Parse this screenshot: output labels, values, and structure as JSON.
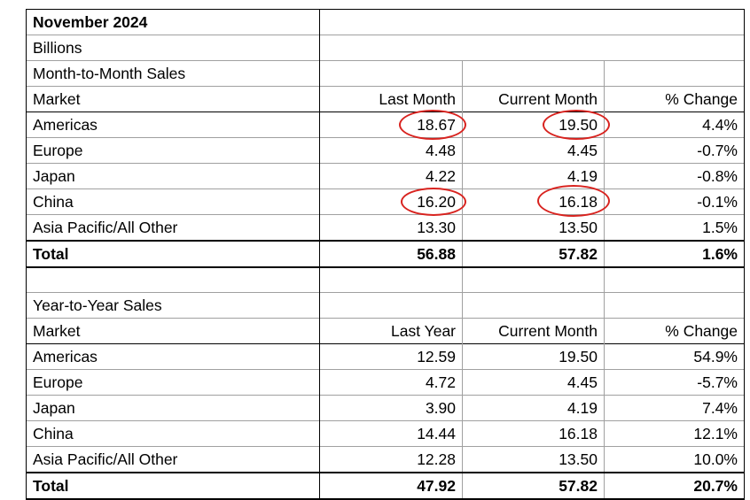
{
  "sheet": {
    "title": "November 2024",
    "units": "Billions",
    "mtm": {
      "section_label": "Month-to-Month Sales",
      "headers": [
        "Market",
        "Last Month",
        "Current Month",
        "% Change"
      ],
      "rows": [
        {
          "market": "Americas",
          "prev": "18.67",
          "curr": "19.50",
          "change": "4.4%"
        },
        {
          "market": "Europe",
          "prev": "4.48",
          "curr": "4.45",
          "change": "-0.7%"
        },
        {
          "market": "Japan",
          "prev": "4.22",
          "curr": "4.19",
          "change": "-0.8%"
        },
        {
          "market": "China",
          "prev": "16.20",
          "curr": "16.18",
          "change": "-0.1%"
        },
        {
          "market": "Asia Pacific/All Other",
          "prev": "13.30",
          "curr": "13.50",
          "change": "1.5%"
        }
      ],
      "total": {
        "market": "Total",
        "prev": "56.88",
        "curr": "57.82",
        "change": "1.6%"
      }
    },
    "yty": {
      "section_label": "Year-to-Year Sales",
      "headers": [
        "Market",
        "Last Year",
        "Current Month",
        "% Change"
      ],
      "rows": [
        {
          "market": "Americas",
          "prev": "12.59",
          "curr": "19.50",
          "change": "54.9%"
        },
        {
          "market": "Europe",
          "prev": "4.72",
          "curr": "4.45",
          "change": "-5.7%"
        },
        {
          "market": "Japan",
          "prev": "3.90",
          "curr": "4.19",
          "change": "7.4%"
        },
        {
          "market": "China",
          "prev": "14.44",
          "curr": "16.18",
          "change": "12.1%"
        },
        {
          "market": "Asia Pacific/All Other",
          "prev": "12.28",
          "curr": "13.50",
          "change": "10.0%"
        }
      ],
      "total": {
        "market": "Total",
        "prev": "47.92",
        "curr": "57.82",
        "change": "20.7%"
      }
    }
  },
  "annotations": {
    "color": "#d8231f",
    "circled_values": [
      "18.67",
      "19.50",
      "16.20",
      "16.18"
    ]
  }
}
